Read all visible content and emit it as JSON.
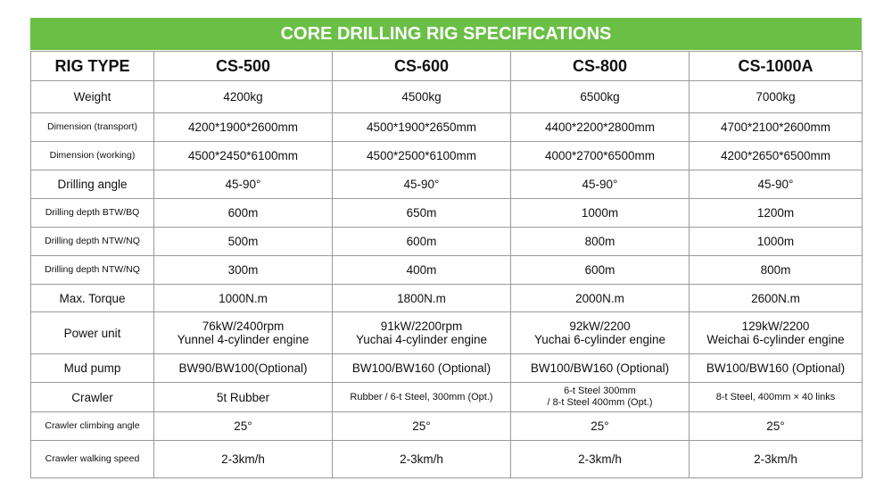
{
  "title": "CORE DRILLING RIG SPECIFICATIONS",
  "table": {
    "header": [
      "RIG TYPE",
      "CS-500",
      "CS-600",
      "CS-800",
      "CS-1000A"
    ],
    "rows": [
      [
        "Weight",
        "4200kg",
        "4500kg",
        "6500kg",
        "7000kg"
      ],
      [
        "Dimension (transport)",
        "4200*1900*2600mm",
        "4500*1900*2650mm",
        "4400*2200*2800mm",
        "4700*2100*2600mm"
      ],
      [
        "Dimension (working)",
        "4500*2450*6100mm",
        "4500*2500*6100mm",
        "4000*2700*6500mm",
        "4200*2650*6500mm"
      ],
      [
        "Drilling angle",
        "45-90°",
        "45-90°",
        "45-90°",
        "45-90°"
      ],
      [
        "Drilling depth BTW/BQ",
        "600m",
        "650m",
        "1000m",
        "1200m"
      ],
      [
        "Drilling depth NTW/NQ",
        "500m",
        "600m",
        "800m",
        "1000m"
      ],
      [
        "Drilling depth NTW/NQ",
        "300m",
        "400m",
        "600m",
        "800m"
      ],
      [
        "Max. Torque",
        "1000N.m",
        "1800N.m",
        "2000N.m",
        "2600N.m"
      ],
      [
        "Power unit",
        [
          "76kW/2400rpm",
          "Yunnel 4-cylinder engine"
        ],
        [
          "91kW/2200rpm",
          "Yuchai 4-cylinder engine"
        ],
        [
          "92kW/2200",
          "Yuchai 6-cylinder engine"
        ],
        [
          "129kW/2200",
          "Weichai 6-cylinder engine"
        ]
      ],
      [
        "Mud pump",
        "BW90/BW100(Optional)",
        "BW100/BW160 (Optional)",
        "BW100/BW160 (Optional)",
        "BW100/BW160 (Optional)"
      ],
      [
        "Crawler",
        "5t Rubber",
        "Rubber / 6-t Steel, 300mm (Opt.)",
        [
          "6-t Steel 300mm",
          "/ 8-t Steel 400mm (Opt.)"
        ],
        "8-t Steel, 400mm × 40 links"
      ],
      [
        "Crawler climbing angle",
        "25°",
        "25°",
        "25°",
        "25°"
      ],
      [
        "Crawler walking speed",
        "2-3km/h",
        "2-3km/h",
        "2-3km/h",
        "2-3km/h"
      ]
    ]
  }
}
